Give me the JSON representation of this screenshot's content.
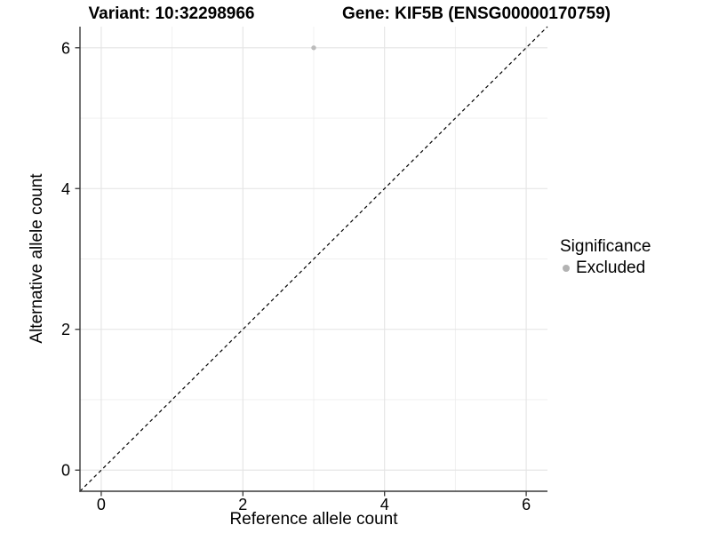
{
  "chart_data": {
    "type": "scatter",
    "title_left": "Variant: 10:32298966",
    "title_right": "Gene: KIF5B (ENSG00000170759)",
    "xlabel": "Reference allele count",
    "ylabel": "Alternative allele count",
    "xlim": [
      -0.3,
      6.3
    ],
    "ylim": [
      -0.3,
      6.3
    ],
    "xticks": [
      0,
      2,
      4,
      6
    ],
    "yticks": [
      0,
      2,
      4,
      6
    ],
    "minor_xticks": [
      1,
      3,
      5
    ],
    "minor_yticks": [
      1,
      3,
      5
    ],
    "grid": true,
    "points": [
      {
        "x": 3,
        "y": 6,
        "series": "Excluded"
      }
    ],
    "reference_line": {
      "type": "identity",
      "style": "dashed",
      "color": "#000000"
    },
    "legend": {
      "title": "Significance",
      "position": "right",
      "items": [
        {
          "label": "Excluded",
          "color": "#b3b3b3"
        }
      ]
    },
    "colors": {
      "point": "#bcbcbc",
      "grid_major": "#e4e4e4",
      "grid_minor": "#efefef",
      "axis": "#383838",
      "tick_text": "#000000",
      "background": "#ffffff"
    }
  }
}
